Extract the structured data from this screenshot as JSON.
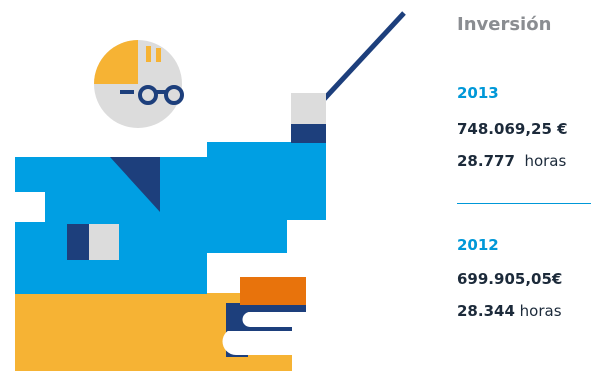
{
  "panel": {
    "title": "Inversión",
    "entries": [
      {
        "year": "2013",
        "amount": "748.069,25 €",
        "hours_value": "28.777",
        "hours_unit": "horas"
      },
      {
        "year": "2012",
        "amount": "699.905,05€",
        "hours_value": "28.344",
        "hours_unit": "horas"
      }
    ]
  },
  "illustration": {
    "subject": "teacher-with-pointer-and-books",
    "colors": {
      "blue": "#009fe3",
      "navy": "#1d3f7c",
      "yellow": "#f6b334",
      "orange": "#e8730c",
      "gray": "#dcdcdc",
      "white": "#ffffff"
    }
  }
}
